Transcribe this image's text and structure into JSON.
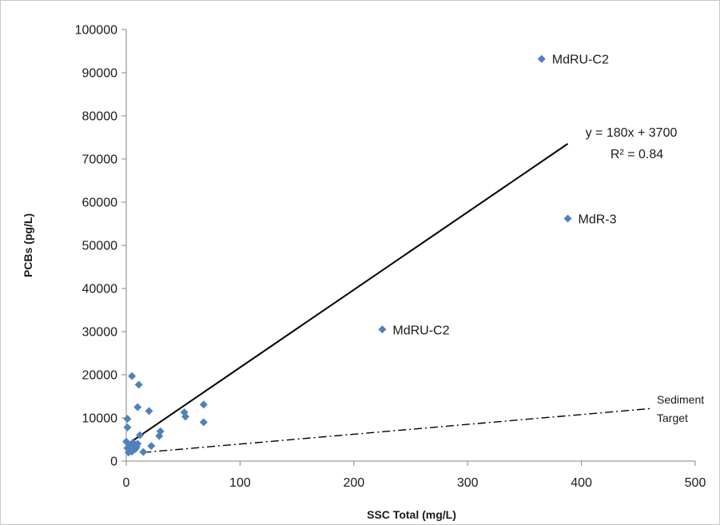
{
  "chart_data": {
    "type": "scatter",
    "title": "",
    "xlabel": "SSC Total  (mg/L)",
    "ylabel": "PCBs  (pg/L)",
    "xlim": [
      0,
      500
    ],
    "ylim": [
      0,
      100000
    ],
    "x_ticks": [
      0,
      100,
      200,
      300,
      400,
      500
    ],
    "y_ticks": [
      0,
      10000,
      20000,
      30000,
      40000,
      50000,
      60000,
      70000,
      80000,
      90000,
      100000
    ],
    "grid": false,
    "legend": "none",
    "marker_color": "#4f81bd",
    "series": [
      {
        "points": [
          {
            "x": 0,
            "y": 4500
          },
          {
            "x": 1,
            "y": 9800
          },
          {
            "x": 1,
            "y": 7800
          },
          {
            "x": 1,
            "y": 3000
          },
          {
            "x": 2,
            "y": 2000
          },
          {
            "x": 3,
            "y": 2500
          },
          {
            "x": 3,
            "y": 3800
          },
          {
            "x": 4,
            "y": 3200
          },
          {
            "x": 5,
            "y": 2200
          },
          {
            "x": 5,
            "y": 19700
          },
          {
            "x": 6,
            "y": 4300
          },
          {
            "x": 7,
            "y": 3600
          },
          {
            "x": 8,
            "y": 2800
          },
          {
            "x": 9,
            "y": 3300
          },
          {
            "x": 10,
            "y": 4000
          },
          {
            "x": 10,
            "y": 12500
          },
          {
            "x": 11,
            "y": 17700
          },
          {
            "x": 12,
            "y": 6000
          },
          {
            "x": 15,
            "y": 2100
          },
          {
            "x": 20,
            "y": 11600
          },
          {
            "x": 22,
            "y": 3500
          },
          {
            "x": 29,
            "y": 5800
          },
          {
            "x": 30,
            "y": 6900
          },
          {
            "x": 51,
            "y": 11300
          },
          {
            "x": 52,
            "y": 10300
          },
          {
            "x": 68,
            "y": 13100
          },
          {
            "x": 68,
            "y": 9000
          },
          {
            "x": 225,
            "y": 30500,
            "label": "MdRU-C2"
          },
          {
            "x": 365,
            "y": 93200,
            "label": "MdRU-C2"
          },
          {
            "x": 388,
            "y": 56200,
            "label": "MdR-3"
          }
        ]
      }
    ],
    "trendline": {
      "x_start": 0,
      "x_end": 388,
      "slope": 180,
      "intercept": 3700,
      "equation": "y = 180x + 3700",
      "r_squared": "R² = 0.84"
    },
    "reference_line": {
      "label_line1": "Sediment",
      "label_line2": "Target",
      "points": [
        {
          "x": 15,
          "y": 2000
        },
        {
          "x": 462,
          "y": 12200
        }
      ]
    }
  }
}
